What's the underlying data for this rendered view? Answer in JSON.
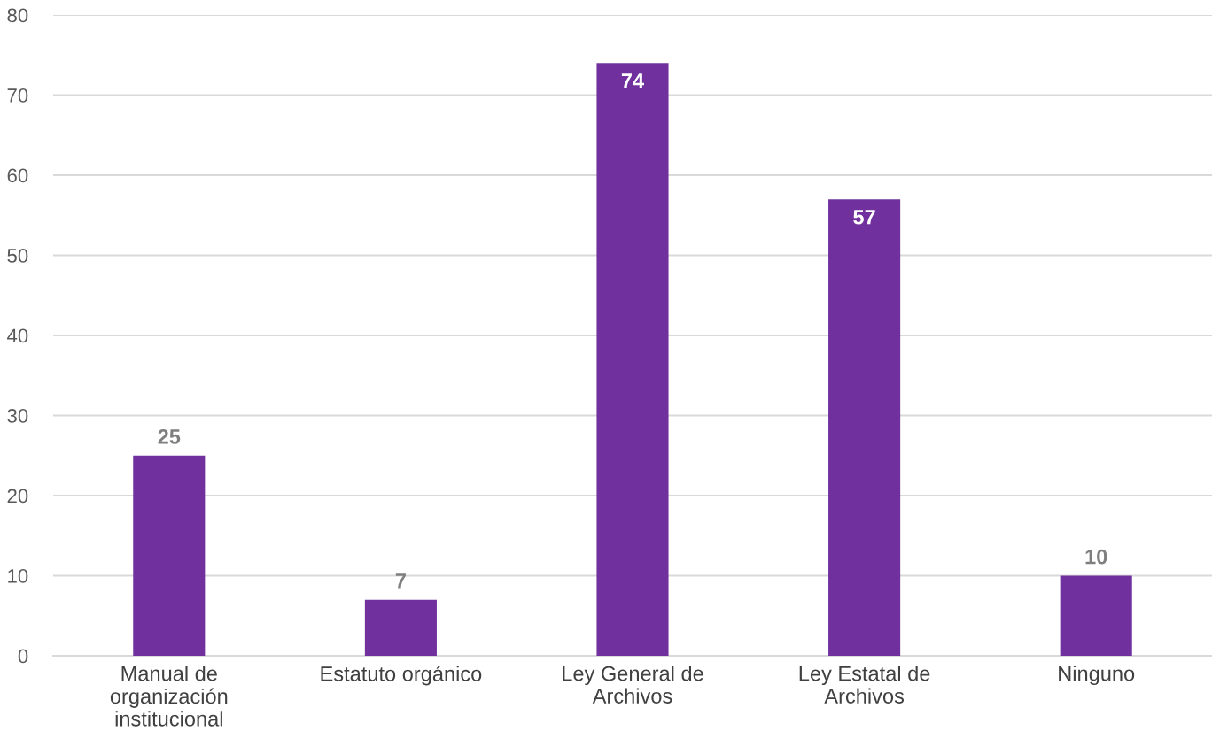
{
  "chart_data": {
    "type": "bar",
    "categories": [
      "Manual de\norganización\ninstitucional",
      "Estatuto orgánico",
      "Ley General de\nArchivos",
      "Ley Estatal de\nArchivos",
      "Ninguno"
    ],
    "values": [
      25,
      7,
      74,
      57,
      10
    ],
    "color": "#70309d",
    "ylim": [
      0,
      80
    ],
    "yticks": [
      0,
      10,
      20,
      30,
      40,
      50,
      60,
      70,
      80
    ],
    "grid": "y",
    "data_labels": true
  }
}
